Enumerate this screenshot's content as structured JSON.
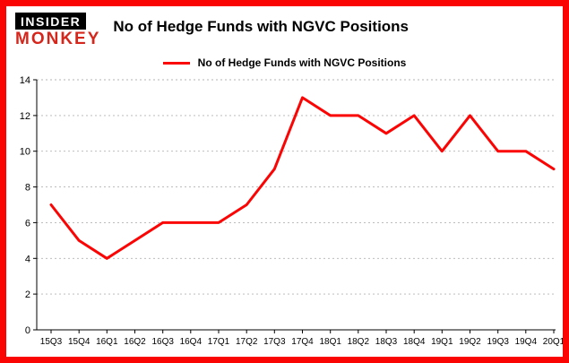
{
  "colors": {
    "accent": "#fb0404",
    "logo_red": "#d6261c",
    "grid": "#b3b3b3"
  },
  "logo": {
    "line1": "INSIDER",
    "line2": "MONKEY"
  },
  "header": {
    "title": "No of Hedge Funds with NGVC Positions"
  },
  "legend": {
    "label": "No of Hedge Funds with NGVC Positions"
  },
  "chart_data": {
    "type": "line",
    "title": "No of Hedge Funds with NGVC Positions",
    "categories": [
      "15Q3",
      "15Q4",
      "16Q1",
      "16Q2",
      "16Q3",
      "16Q4",
      "17Q1",
      "17Q2",
      "17Q3",
      "17Q4",
      "18Q1",
      "18Q2",
      "18Q3",
      "18Q4",
      "19Q1",
      "19Q2",
      "19Q3",
      "19Q4",
      "20Q1"
    ],
    "values": [
      7,
      5,
      4,
      5,
      6,
      6,
      6,
      7,
      9,
      13,
      12,
      12,
      11,
      12,
      10,
      12,
      10,
      10,
      9
    ],
    "xlabel": "",
    "ylabel": "",
    "ylim": [
      0,
      14
    ],
    "yticks": [
      0,
      2,
      4,
      6,
      8,
      10,
      12,
      14
    ],
    "grid": true,
    "legend_position": "top-center",
    "line_width": 3
  }
}
